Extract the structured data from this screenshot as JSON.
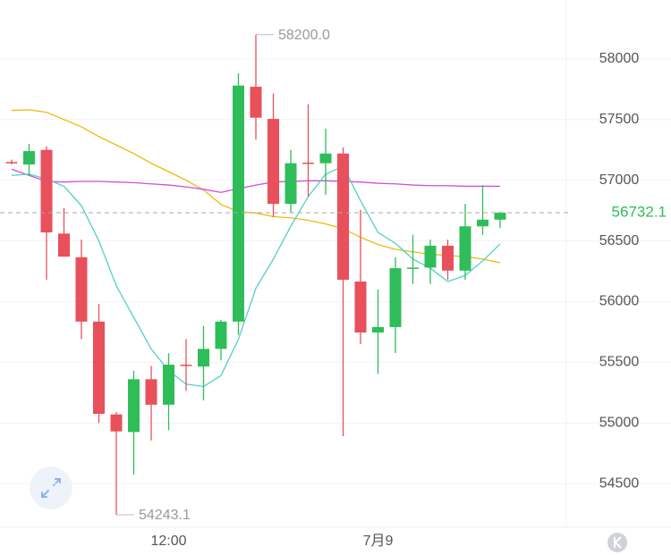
{
  "chart_data": {
    "type": "candlestick",
    "categories": [
      null,
      null,
      null,
      null,
      null,
      null,
      null,
      null,
      null,
      "12:00",
      null,
      null,
      null,
      null,
      null,
      null,
      null,
      null,
      null,
      null,
      null,
      "7月9",
      null,
      null,
      null,
      null,
      null,
      null,
      null
    ],
    "open": [
      57150,
      57130,
      57250,
      56560,
      56365,
      55835,
      55070,
      54925,
      55360,
      55150,
      55480,
      55465,
      55610,
      55835,
      57770,
      57505,
      56805,
      57145,
      57140,
      57220,
      56165,
      55745,
      55790,
      56275,
      56280,
      56460,
      56255,
      56620,
      56675
    ],
    "high": [
      57170,
      57300,
      57280,
      56770,
      56510,
      55980,
      55090,
      55430,
      55470,
      55575,
      55690,
      55800,
      55850,
      57880,
      58200,
      57715,
      57250,
      57625,
      57425,
      57270,
      56755,
      56100,
      56365,
      56550,
      56510,
      56510,
      56805,
      56960,
      56740
    ],
    "low": [
      57130,
      57035,
      56180,
      56370,
      55690,
      55000,
      54243.1,
      54575,
      54855,
      54940,
      55265,
      55185,
      55515,
      55725,
      57335,
      56695,
      56735,
      56865,
      56880,
      54890,
      55650,
      55405,
      55575,
      56145,
      56145,
      56180,
      56180,
      56550,
      56605
    ],
    "close": [
      57145,
      57240,
      56570,
      56370,
      55835,
      55075,
      54930,
      55360,
      55150,
      55480,
      55470,
      55610,
      55835,
      57780,
      57515,
      56805,
      57140,
      57140,
      57220,
      56180,
      55745,
      55790,
      56275,
      56280,
      56460,
      56255,
      56620,
      56675,
      56732.1
    ],
    "up_color": "#2ebd59",
    "down_color": "#e8505b",
    "series": [
      {
        "color": "#f0b90b",
        "values": [
          57575,
          57580,
          57560,
          57500,
          57440,
          57360,
          57290,
          57220,
          57140,
          57070,
          57000,
          56920,
          56800,
          56740,
          56730,
          56700,
          56690,
          56670,
          56640,
          56600,
          56530,
          56470,
          56430,
          56410,
          56390,
          56380,
          56370,
          56350,
          56320
        ]
      },
      {
        "color": "#d04fd8",
        "values": [
          57090,
          57040,
          56990,
          56985,
          56990,
          56990,
          56985,
          56980,
          56970,
          56960,
          56945,
          56925,
          56900,
          56930,
          56960,
          56985,
          56990,
          56995,
          56995,
          56990,
          56985,
          56975,
          56970,
          56960,
          56955,
          56955,
          56950,
          56950,
          56950
        ]
      },
      {
        "color": "#4fd1c5",
        "values": [
          57040,
          57050,
          57010,
          56950,
          56790,
          56500,
          56130,
          55870,
          55610,
          55430,
          55320,
          55300,
          55390,
          55690,
          56110,
          56350,
          56620,
          56865,
          57050,
          57115,
          56830,
          56570,
          56480,
          56350,
          56275,
          56165,
          56215,
          56335,
          56475
        ]
      }
    ],
    "ylim": [
      54140,
      58485
    ],
    "yticks": [
      54500,
      55000,
      55500,
      56000,
      56500,
      57000,
      57500,
      58000
    ],
    "grid": true,
    "last_price": 56732.1,
    "annotations": [
      {
        "value": 58200,
        "label": "58200.0"
      },
      {
        "value": 54243.1,
        "label": "54243.1"
      }
    ]
  }
}
